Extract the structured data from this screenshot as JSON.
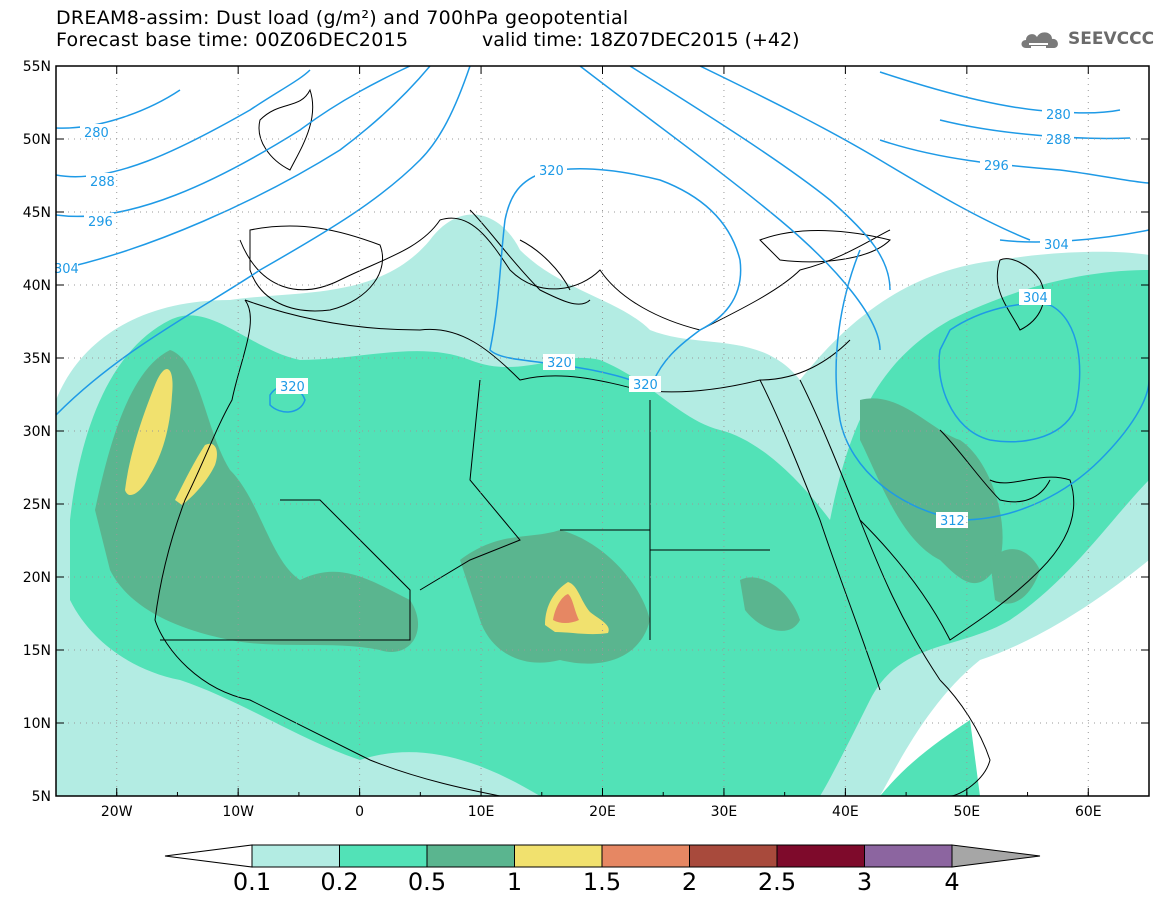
{
  "header": {
    "title_line1": "DREAM8-assim: Dust load (g/m²) and 700hPa geopotential",
    "title_line2_left": "Forecast base time: 00Z06DEC2015",
    "title_line2_right": "valid time: 18Z07DEC2015 (+42)",
    "brand": "SEEVCCC",
    "brand_icon": "cloud-logo-icon"
  },
  "map": {
    "lon_range": [
      -25,
      65
    ],
    "lat_range": [
      5,
      55
    ],
    "lon_ticks": [
      "20W",
      "10W",
      "0",
      "10E",
      "20E",
      "30E",
      "40E",
      "50E",
      "60E"
    ],
    "lat_ticks": [
      "55N",
      "50N",
      "45N",
      "40N",
      "35N",
      "30N",
      "25N",
      "20N",
      "15N",
      "10N",
      "5N"
    ],
    "contour_labels": [
      "280",
      "288",
      "296",
      "304",
      "280",
      "288",
      "296",
      "304",
      "320",
      "320",
      "320",
      "320",
      "304",
      "312"
    ],
    "contour_color": "#1e9ae6"
  },
  "colorbar": {
    "labels": [
      "0.1",
      "0.2",
      "0.5",
      "1",
      "1.5",
      "2",
      "2.5",
      "3",
      "4"
    ],
    "colors": [
      "#b3ece3",
      "#52e2b7",
      "#5ab58f",
      "#f1e16e",
      "#e68763",
      "#a84a3c",
      "#7e0a2b",
      "#8c65a0",
      "#a6a6a6"
    ]
  }
}
